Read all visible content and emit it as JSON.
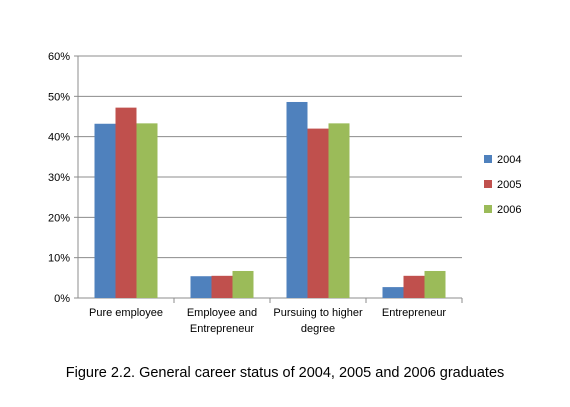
{
  "caption": "Figure 2.2. General career status of 2004, 2005 and 2006 graduates",
  "chart_data": {
    "type": "bar",
    "title": "",
    "xlabel": "",
    "ylabel": "",
    "ylim": [
      0,
      60
    ],
    "y_ticks": [
      "0%",
      "10%",
      "20%",
      "30%",
      "40%",
      "50%",
      "60%"
    ],
    "y_tick_values": [
      0,
      10,
      20,
      30,
      40,
      50,
      60
    ],
    "grid": true,
    "legend_position": "right",
    "categories": [
      [
        "Pure employee"
      ],
      [
        "Employee and",
        "Entrepreneur"
      ],
      [
        "Pursuing to higher",
        "degree"
      ],
      [
        "Entrepreneur"
      ]
    ],
    "series": [
      {
        "name": "2004",
        "color": "#4F81BD",
        "values": [
          43.2,
          5.4,
          48.6,
          2.7
        ]
      },
      {
        "name": "2005",
        "color": "#C0504D",
        "values": [
          47.2,
          5.5,
          42.0,
          5.5
        ]
      },
      {
        "name": "2006",
        "color": "#9BBB59",
        "values": [
          43.3,
          6.7,
          43.3,
          6.7
        ]
      }
    ]
  }
}
